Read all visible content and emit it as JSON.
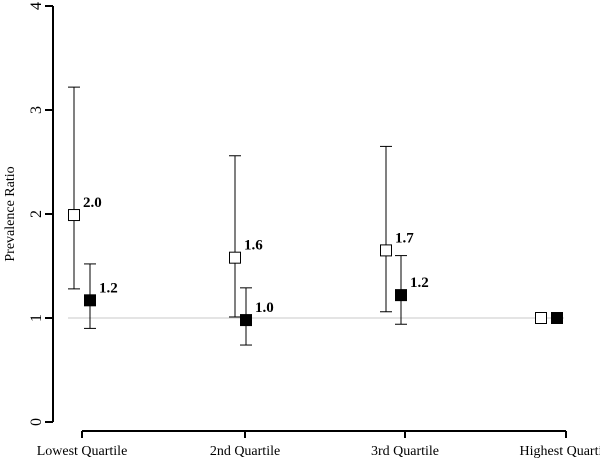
{
  "chart_data": {
    "type": "scatter",
    "ylabel": "Prevalence Ratio",
    "xlabel": "",
    "ylim": [
      0,
      4
    ],
    "yticks": [
      0,
      1,
      2,
      3,
      4
    ],
    "reference_line": 1,
    "categories": [
      "Lowest Quartile",
      "2nd Quartile",
      "3rd Quartile",
      "Highest Quartile"
    ],
    "series": [
      {
        "marker": "open-square",
        "color": "#ffffff",
        "points": [
          {
            "category": "Lowest Quartile",
            "value": 1.99,
            "lower": 1.28,
            "upper": 3.22,
            "label": "2.0"
          },
          {
            "category": "2nd Quartile",
            "value": 1.58,
            "lower": 1.01,
            "upper": 2.56,
            "label": "1.6"
          },
          {
            "category": "3rd Quartile",
            "value": 1.65,
            "lower": 1.06,
            "upper": 2.65,
            "label": "1.7"
          },
          {
            "category": "Highest Quartile",
            "value": 1.0,
            "lower": null,
            "upper": null,
            "label": ""
          }
        ]
      },
      {
        "marker": "filled-square",
        "color": "#000000",
        "points": [
          {
            "category": "Lowest Quartile",
            "value": 1.17,
            "lower": 0.9,
            "upper": 1.52,
            "label": "1.2"
          },
          {
            "category": "2nd Quartile",
            "value": 0.98,
            "lower": 0.74,
            "upper": 1.29,
            "label": "1.0"
          },
          {
            "category": "3rd Quartile",
            "value": 1.22,
            "lower": 0.94,
            "upper": 1.6,
            "label": "1.2"
          },
          {
            "category": "Highest Quartile",
            "value": 1.0,
            "lower": null,
            "upper": null,
            "label": ""
          }
        ]
      }
    ]
  }
}
